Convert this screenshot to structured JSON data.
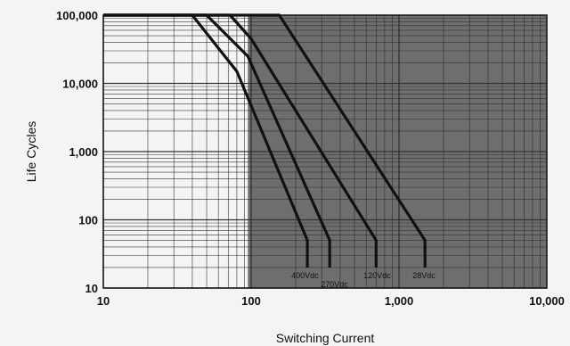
{
  "chart_data": {
    "type": "line",
    "title": "",
    "xlabel": "Switching Current",
    "ylabel": "Life Cycles",
    "xscale": "log",
    "yscale": "log",
    "xlim": [
      10,
      10000
    ],
    "ylim": [
      10,
      100000
    ],
    "grid": true,
    "legend": "none",
    "shaded_region_x_from": 95,
    "x_tick_labels": [
      "10",
      "100",
      "1,000",
      "10,000"
    ],
    "y_tick_labels": [
      "100,000",
      "10,000",
      "1,000",
      "100",
      "10"
    ],
    "series": [
      {
        "name": "400Vdc",
        "x": [
          10,
          40,
          80,
          240,
          240
        ],
        "y": [
          100000,
          100000,
          15000,
          50,
          20
        ]
      },
      {
        "name": "270Vdc",
        "x": [
          10,
          50,
          95,
          340,
          340
        ],
        "y": [
          100000,
          100000,
          25000,
          50,
          20
        ]
      },
      {
        "name": "120Vdc",
        "x": [
          10,
          72,
          100,
          700,
          700
        ],
        "y": [
          100000,
          100000,
          45000,
          50,
          20
        ]
      },
      {
        "name": "28Vdc",
        "x": [
          10,
          155,
          1500,
          1500
        ],
        "y": [
          100000,
          100000,
          50,
          20
        ]
      }
    ],
    "colors": {
      "line": "#111111",
      "shade": "#6e6e6e",
      "grid": "#333333",
      "background": "#f4f4f2"
    }
  }
}
